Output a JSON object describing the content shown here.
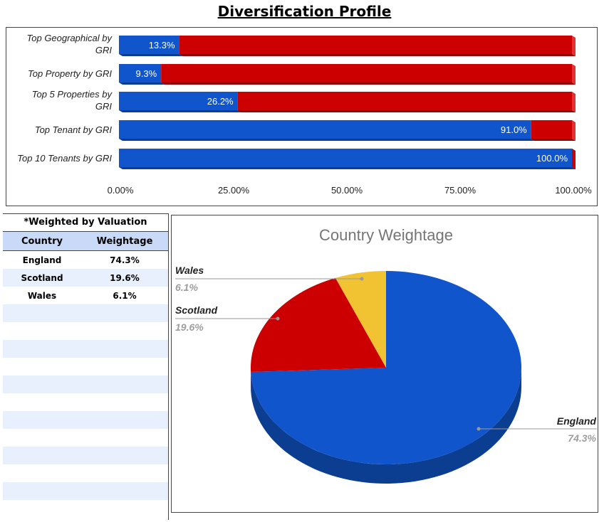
{
  "page_title": "Diversification Profile",
  "table": {
    "caption": "*Weighted by Valuation",
    "headers": [
      "Country",
      "Weightage"
    ],
    "rows": [
      {
        "country": "England",
        "weight": "74.3%"
      },
      {
        "country": "Scotland",
        "weight": "19.6%"
      },
      {
        "country": "Wales",
        "weight": "6.1%"
      }
    ],
    "empty_rows": 12
  },
  "chart_data": [
    {
      "type": "bar",
      "orientation": "horizontal",
      "stacked": "100%",
      "categories": [
        "Top Geographical by GRI",
        "Top Property by GRI",
        "Top 5 Properties by GRI",
        "Top Tenant by GRI",
        "Top 10 Tenants by GRI"
      ],
      "series": [
        {
          "values": [
            13.3,
            9.3,
            26.2,
            91.0,
            100.0
          ],
          "labels": [
            "13.3%",
            "9.3%",
            "26.2%",
            "91.0%",
            "100.0%"
          ],
          "color": "#1155cc"
        },
        {
          "values": [
            86.7,
            90.7,
            73.8,
            9.0,
            0.0
          ],
          "color": "#cc0000"
        }
      ],
      "xlim": [
        0,
        100
      ],
      "xticks": [
        "0.00%",
        "25.00%",
        "50.00%",
        "75.00%",
        "100.00%"
      ],
      "grid": false,
      "legend": "none",
      "style": "3d"
    },
    {
      "type": "pie",
      "title": "Country Weightage",
      "style": "3d",
      "slices": [
        {
          "label": "England",
          "value": 74.3,
          "display": "74.3%",
          "color": "#1155cc"
        },
        {
          "label": "Scotland",
          "value": 19.6,
          "display": "19.6%",
          "color": "#cc0000"
        },
        {
          "label": "Wales",
          "value": 6.1,
          "display": "6.1%",
          "color": "#f1c232"
        }
      ]
    }
  ]
}
